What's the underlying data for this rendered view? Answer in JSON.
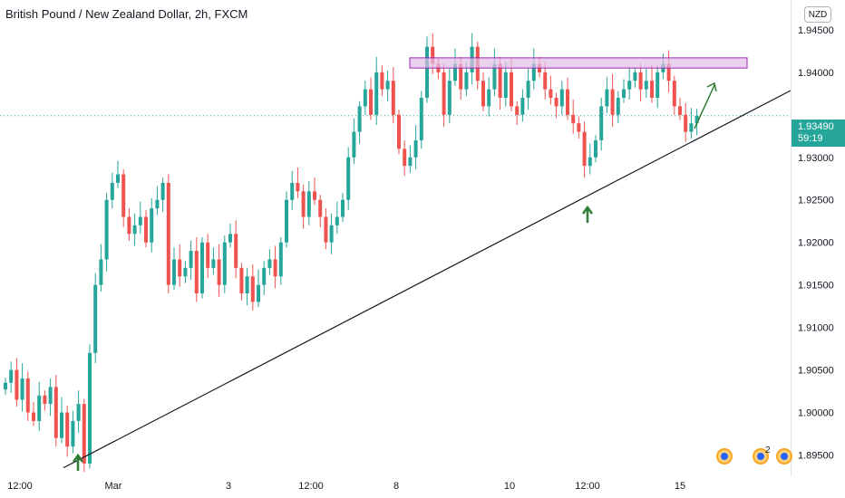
{
  "header": {
    "title": "British Pound / New Zealand Dollar, 2h, FXCM"
  },
  "currency_button": "NZD",
  "price_badge": {
    "price": "1.93490",
    "countdown": "59:19",
    "color": "#26a69a"
  },
  "colors": {
    "up": "#26a69a",
    "down": "#ef5350",
    "zone_fill": "#e1bee7",
    "zone_border": "#9c27b0",
    "arrow": "#2e7d32",
    "price_line": "#26a69a"
  },
  "event_flags": {
    "count_label": "2",
    "icon": "event-flag-icon"
  },
  "chart_data": {
    "type": "candlestick",
    "x_ticks": [
      "12:00",
      "Mar",
      "3",
      "12:00",
      "8",
      "10",
      "12:00",
      "15"
    ],
    "y_ticks": [
      "1.94500",
      "1.94000",
      "1.93000",
      "1.92500",
      "1.92000",
      "1.91500",
      "1.91000",
      "1.90500",
      "1.90000",
      "1.89500"
    ],
    "ylim": [
      1.8925,
      1.9485
    ],
    "current_price": 1.9349,
    "resistance_zone": [
      1.9405,
      1.9417
    ],
    "trendline": {
      "from": [
        0,
        1.8935
      ],
      "to": [
        1,
        1.938
      ]
    },
    "closes": [
      1.9035,
      1.905,
      1.9015,
      1.904,
      1.9,
      1.899,
      1.902,
      1.901,
      1.903,
      1.897,
      1.9,
      1.896,
      1.899,
      1.901,
      1.894,
      1.907,
      1.915,
      1.918,
      1.925,
      1.927,
      1.928,
      1.923,
      1.921,
      1.922,
      1.923,
      1.92,
      1.924,
      1.925,
      1.927,
      1.915,
      1.918,
      1.916,
      1.917,
      1.919,
      1.914,
      1.92,
      1.917,
      1.918,
      1.915,
      1.92,
      1.921,
      1.917,
      1.914,
      1.916,
      1.913,
      1.915,
      1.917,
      1.918,
      1.916,
      1.92,
      1.925,
      1.927,
      1.926,
      1.923,
      1.926,
      1.925,
      1.923,
      1.92,
      1.922,
      1.923,
      1.925,
      1.93,
      1.933,
      1.936,
      1.938,
      1.935,
      1.94,
      1.938,
      1.939,
      1.935,
      1.931,
      1.929,
      1.93,
      1.932,
      1.937,
      1.943,
      1.941,
      1.94,
      1.935,
      1.939,
      1.941,
      1.938,
      1.94,
      1.943,
      1.939,
      1.936,
      1.938,
      1.941,
      1.937,
      1.94,
      1.936,
      1.935,
      1.937,
      1.939,
      1.941,
      1.94,
      1.938,
      1.937,
      1.936,
      1.938,
      1.935,
      1.934,
      1.933,
      1.929,
      1.93,
      1.932,
      1.936,
      1.938,
      1.935,
      1.937,
      1.938,
      1.939,
      1.94,
      1.938,
      1.939,
      1.937,
      1.94,
      1.941,
      1.939,
      1.936,
      1.935,
      1.933,
      1.934,
      1.9349
    ]
  }
}
